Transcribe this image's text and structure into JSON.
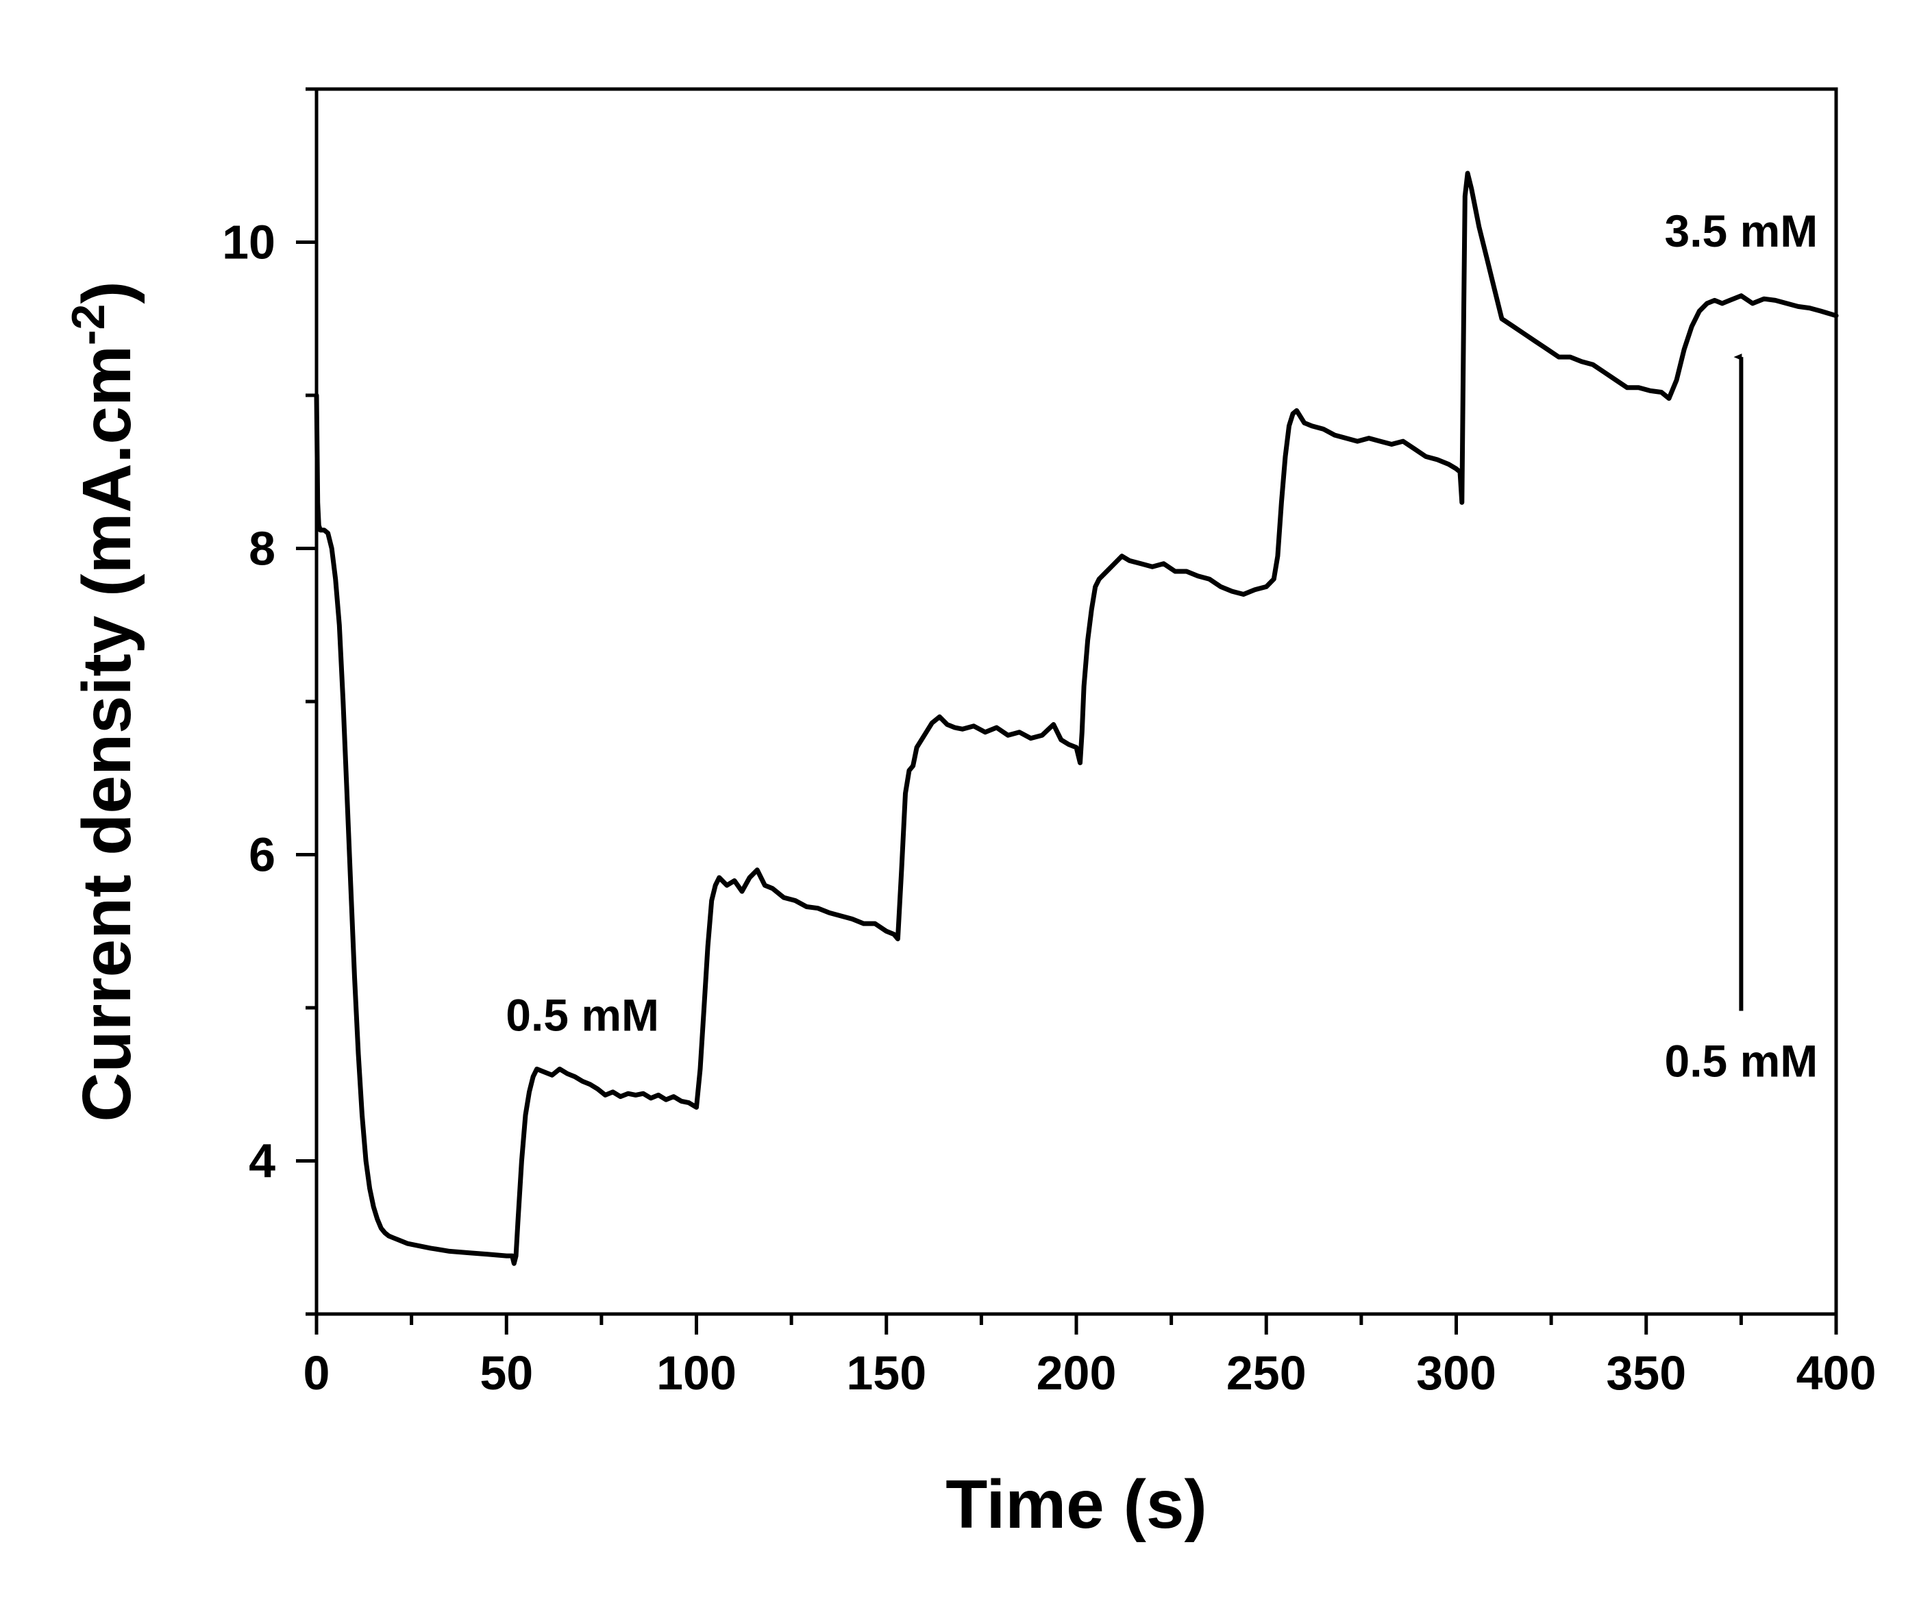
{
  "chart_data": {
    "type": "line",
    "title": "",
    "xlabel": "Time (s)",
    "ylabel_main": "Current density (mA.cm",
    "ylabel_sup": "-2",
    "ylabel_close": ")",
    "xlim": [
      0,
      400
    ],
    "ylim": [
      3.0,
      11.0
    ],
    "xticks": [
      0,
      50,
      100,
      150,
      200,
      250,
      300,
      350,
      400
    ],
    "xtick_labels": [
      "0",
      "50",
      "100",
      "150",
      "200",
      "250",
      "300",
      "350",
      "400"
    ],
    "yticks": [
      4,
      6,
      8,
      10
    ],
    "ytick_labels": [
      "4",
      "6",
      "8",
      "10"
    ],
    "grid": false,
    "legend": "none",
    "series": [
      {
        "name": "Current density",
        "color": "#000000",
        "x": [
          0,
          0.3,
          0.6,
          1,
          2,
          3,
          4,
          5,
          6,
          7,
          8,
          9,
          10,
          11,
          12,
          13,
          14,
          15,
          16,
          17,
          18,
          19,
          20,
          22,
          24,
          26,
          28,
          30,
          35,
          40,
          45,
          50,
          51.5,
          52,
          52.5,
          53,
          54,
          55,
          56,
          57,
          58,
          60,
          62,
          64,
          66,
          68,
          70,
          72,
          74,
          76,
          78,
          80,
          82,
          84,
          86,
          88,
          90,
          92,
          94,
          96,
          98,
          100,
          101,
          102,
          103,
          104,
          105,
          106,
          108,
          110,
          112,
          114,
          116,
          118,
          120,
          123,
          126,
          129,
          132,
          135,
          138,
          141,
          144,
          147,
          150,
          152,
          153,
          154,
          155,
          156,
          157,
          158,
          160,
          162,
          164,
          166,
          168,
          170,
          173,
          176,
          179,
          182,
          185,
          188,
          191,
          194,
          196,
          198,
          200,
          201,
          201.5,
          202,
          203,
          204,
          205,
          206,
          208,
          210,
          212,
          214,
          217,
          220,
          223,
          226,
          229,
          232,
          235,
          238,
          241,
          244,
          247,
          250,
          252,
          253,
          254,
          255,
          256,
          257,
          258,
          260,
          262,
          265,
          268,
          271,
          274,
          277,
          280,
          283,
          286,
          289,
          292,
          295,
          298,
          300,
          301,
          301.5,
          302,
          302.3,
          303,
          304,
          306,
          308,
          310,
          312,
          315,
          318,
          321,
          324,
          327,
          330,
          333,
          336,
          339,
          342,
          345,
          348,
          351,
          354,
          356,
          358,
          360,
          362,
          364,
          366,
          368,
          370,
          372,
          375,
          378,
          381,
          384,
          387,
          390,
          393,
          396,
          400
        ],
        "y": [
          9.0,
          8.3,
          8.15,
          8.12,
          8.12,
          8.1,
          8.0,
          7.8,
          7.5,
          7.0,
          6.4,
          5.8,
          5.2,
          4.7,
          4.3,
          4.0,
          3.82,
          3.7,
          3.62,
          3.56,
          3.53,
          3.51,
          3.5,
          3.48,
          3.46,
          3.45,
          3.44,
          3.43,
          3.41,
          3.4,
          3.39,
          3.38,
          3.38,
          3.33,
          3.38,
          3.6,
          4.0,
          4.3,
          4.45,
          4.55,
          4.6,
          4.58,
          4.56,
          4.6,
          4.57,
          4.55,
          4.52,
          4.5,
          4.47,
          4.43,
          4.45,
          4.42,
          4.44,
          4.43,
          4.44,
          4.41,
          4.43,
          4.4,
          4.42,
          4.39,
          4.38,
          4.35,
          4.6,
          5.0,
          5.4,
          5.7,
          5.8,
          5.85,
          5.8,
          5.83,
          5.76,
          5.85,
          5.9,
          5.8,
          5.78,
          5.72,
          5.7,
          5.66,
          5.65,
          5.62,
          5.6,
          5.58,
          5.55,
          5.55,
          5.5,
          5.48,
          5.45,
          5.9,
          6.4,
          6.55,
          6.58,
          6.7,
          6.78,
          6.86,
          6.9,
          6.85,
          6.83,
          6.82,
          6.84,
          6.8,
          6.83,
          6.78,
          6.8,
          6.76,
          6.78,
          6.85,
          6.75,
          6.72,
          6.7,
          6.6,
          6.8,
          7.1,
          7.4,
          7.6,
          7.75,
          7.8,
          7.85,
          7.9,
          7.95,
          7.92,
          7.9,
          7.88,
          7.9,
          7.85,
          7.85,
          7.82,
          7.8,
          7.75,
          7.72,
          7.7,
          7.73,
          7.75,
          7.8,
          7.95,
          8.3,
          8.6,
          8.8,
          8.88,
          8.9,
          8.82,
          8.8,
          8.78,
          8.74,
          8.72,
          8.7,
          8.72,
          8.7,
          8.68,
          8.7,
          8.65,
          8.6,
          8.58,
          8.55,
          8.52,
          8.5,
          8.3,
          9.6,
          10.3,
          10.45,
          10.35,
          10.1,
          9.9,
          9.7,
          9.5,
          9.45,
          9.4,
          9.35,
          9.3,
          9.25,
          9.25,
          9.22,
          9.2,
          9.15,
          9.1,
          9.05,
          9.05,
          9.03,
          9.02,
          8.98,
          9.1,
          9.3,
          9.45,
          9.55,
          9.6,
          9.62,
          9.6,
          9.62,
          9.65,
          9.6,
          9.63,
          9.62,
          9.6,
          9.58,
          9.57,
          9.55,
          9.52
        ]
      }
    ],
    "annotations": [
      {
        "text": "0.5 mM",
        "x": 70,
        "y": 4.85
      },
      {
        "text": "3.5 mM",
        "x": 375,
        "y": 9.97
      },
      {
        "text": "0.5 mM",
        "x": 375,
        "y": 4.55
      }
    ],
    "arrow": {
      "x": 375,
      "y_from": 4.98,
      "y_to": 9.25
    }
  }
}
